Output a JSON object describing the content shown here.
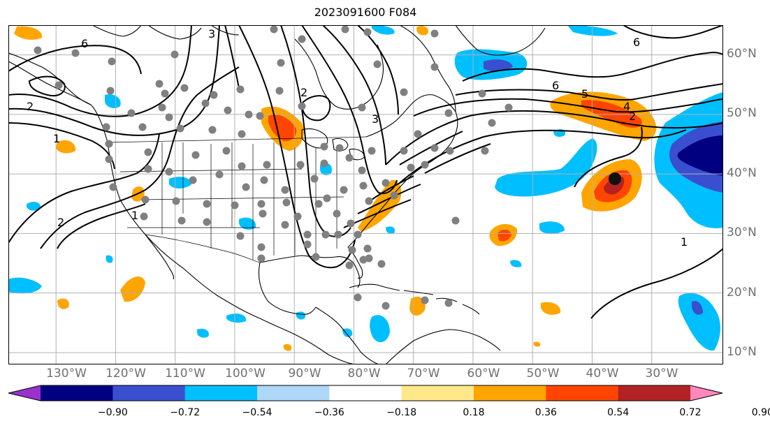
{
  "title": "2023091600 F084",
  "map": {
    "projection": "PlateCarree",
    "lon_range": [
      -138,
      -18
    ],
    "lat_range": [
      8,
      65
    ],
    "gridlines": true,
    "lat_ticks": [
      {
        "value": 60,
        "label": "60°N"
      },
      {
        "value": 50,
        "label": "50°N"
      },
      {
        "value": 40,
        "label": "40°N"
      },
      {
        "value": 30,
        "label": "30°N"
      },
      {
        "value": 20,
        "label": "20°N"
      },
      {
        "value": 10,
        "label": "10°N"
      }
    ],
    "lon_ticks": [
      {
        "value": -130,
        "label": "130°W"
      },
      {
        "value": -120,
        "label": "120°W"
      },
      {
        "value": -110,
        "label": "110°W"
      },
      {
        "value": -100,
        "label": "100°W"
      },
      {
        "value": -90,
        "label": "90°W"
      },
      {
        "value": -80,
        "label": "80°W"
      },
      {
        "value": -70,
        "label": "70°W"
      },
      {
        "value": -60,
        "label": "60°W"
      },
      {
        "value": -50,
        "label": "50°W"
      },
      {
        "value": -40,
        "label": "40°W"
      },
      {
        "value": -30,
        "label": "30°W"
      }
    ],
    "contour_labels": [
      "6",
      "5",
      "4",
      "3",
      "2",
      "1"
    ],
    "colors": {
      "lvl_neg_090": "#9932cc",
      "lvl_neg_072": "#000080",
      "lvl_neg_054": "#3a4fcf",
      "lvl_neg_036": "#00bfff",
      "lvl_neg_018": "#add8f7",
      "lvl_pos_018": "#ffe88a",
      "lvl_pos_036": "#ffa500",
      "lvl_pos_054": "#ff4500",
      "lvl_pos_072": "#b22222",
      "lvl_pos_090": "#ff88bb",
      "contour": "#000000",
      "stations": "#808080",
      "storm_marker": "#111111"
    }
  },
  "colorbar": {
    "levels": [
      "−0.90",
      "−0.72",
      "−0.54",
      "−0.36",
      "−0.18",
      "0.18",
      "0.36",
      "0.54",
      "0.72",
      "0.90"
    ],
    "colors": [
      "#9932cc",
      "#000080",
      "#3a4fcf",
      "#00bfff",
      "#add8f7",
      "#ffffff",
      "#ffe88a",
      "#ffa500",
      "#ff4500",
      "#b22222",
      "#ff88bb"
    ]
  }
}
